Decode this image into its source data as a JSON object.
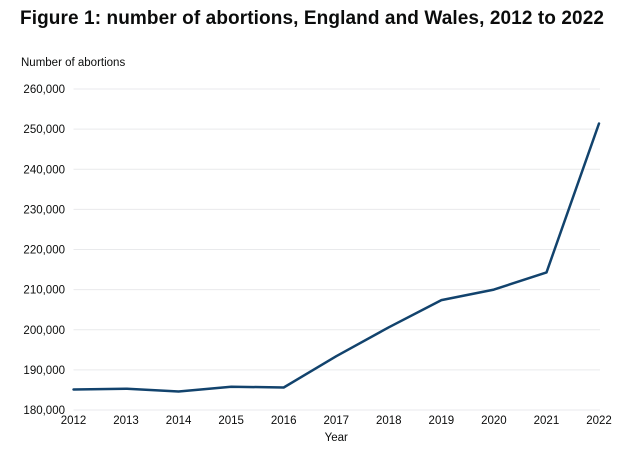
{
  "title": "Figure 1: number of abortions, England and Wales, 2012 to 2022",
  "chart_data": {
    "type": "line",
    "title": "Figure 1: number of abortions, England and Wales, 2012 to 2022",
    "xlabel": "Year",
    "ylabel": "Number of abortions",
    "categories": [
      "2012",
      "2013",
      "2014",
      "2015",
      "2016",
      "2017",
      "2018",
      "2019",
      "2020",
      "2021",
      "2022"
    ],
    "series": [
      {
        "name": "Number of abortions, England and Wales",
        "values": [
          185100,
          185300,
          184600,
          185800,
          185600,
          193400,
          200600,
          207400,
          210000,
          214300,
          251400
        ]
      }
    ],
    "ylim": [
      180000,
      260000
    ],
    "ytick_step": 10000,
    "yticks": [
      180000,
      190000,
      200000,
      210000,
      220000,
      230000,
      240000,
      250000,
      260000
    ],
    "grid": "horizontal only",
    "legend": "none",
    "colors": {
      "line": "#12436D",
      "gridline": "#e9eaec",
      "text": "#0b0c0c",
      "background": "#ffffff"
    }
  }
}
